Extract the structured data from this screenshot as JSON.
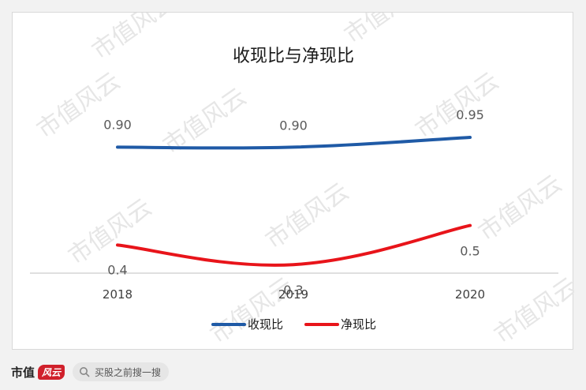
{
  "chart_data": {
    "type": "line",
    "title": "收现比与净现比",
    "categories": [
      "2018",
      "2019",
      "2020"
    ],
    "series": [
      {
        "name": "收现比",
        "values": [
          0.9,
          0.9,
          0.95
        ],
        "labels": [
          "0.90",
          "0.90",
          "0.95"
        ],
        "color": "#1f5aa6"
      },
      {
        "name": "净现比",
        "values": [
          0.4,
          0.3,
          0.5
        ],
        "labels": [
          "0.4",
          "0.3",
          "0.5"
        ],
        "color": "#e8141a"
      }
    ],
    "grid": false,
    "legend_position": "bottom",
    "smooth": true
  },
  "watermark": "市值风云",
  "footer": {
    "brand": "市值",
    "brand_mark": "风云",
    "search_text": "买股之前搜一搜",
    "search_icon": "search-icon"
  }
}
